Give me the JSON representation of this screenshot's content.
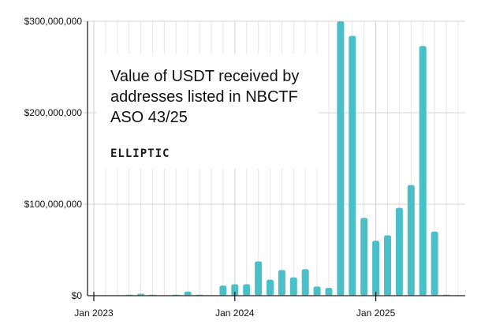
{
  "chart_data": {
    "type": "bar",
    "title": "Value of USDT received by addresses listed in NBCTF ASO 43/25",
    "brand": "ELLIPTIC",
    "xlabel": "",
    "ylabel": "",
    "ylim": [
      0,
      300000000
    ],
    "yticks": [
      0,
      100000000,
      200000000,
      300000000
    ],
    "ytick_labels": [
      "$0",
      "$100,000,000",
      "$200,000,000",
      "$300,000,000"
    ],
    "xtick_labels": [
      {
        "label": "Jan 2023",
        "month_index": 0
      },
      {
        "label": "Jan 2024",
        "month_index": 12
      },
      {
        "label": "Jan 2025",
        "month_index": 24
      }
    ],
    "grid": true,
    "bar_color": "#4bbfc8",
    "categories": [
      "2023-01",
      "2023-02",
      "2023-03",
      "2023-04",
      "2023-05",
      "2023-06",
      "2023-07",
      "2023-08",
      "2023-09",
      "2023-10",
      "2023-11",
      "2023-12",
      "2024-01",
      "2024-02",
      "2024-03",
      "2024-04",
      "2024-05",
      "2024-06",
      "2024-07",
      "2024-08",
      "2024-09",
      "2024-10",
      "2024-11",
      "2024-12",
      "2025-01",
      "2025-02",
      "2025-03",
      "2025-04",
      "2025-05",
      "2025-06",
      "2025-07"
    ],
    "values": [
      0,
      0,
      0,
      1000000,
      2000000,
      1000000,
      0,
      800000,
      4500000,
      1000000,
      0,
      11000000,
      12500000,
      12500000,
      37500000,
      17500000,
      28000000,
      20000000,
      29000000,
      10000000,
      8500000,
      300000000,
      284000000,
      85000000,
      60000000,
      66000000,
      96000000,
      121000000,
      273000000,
      70000000,
      500000
    ]
  }
}
